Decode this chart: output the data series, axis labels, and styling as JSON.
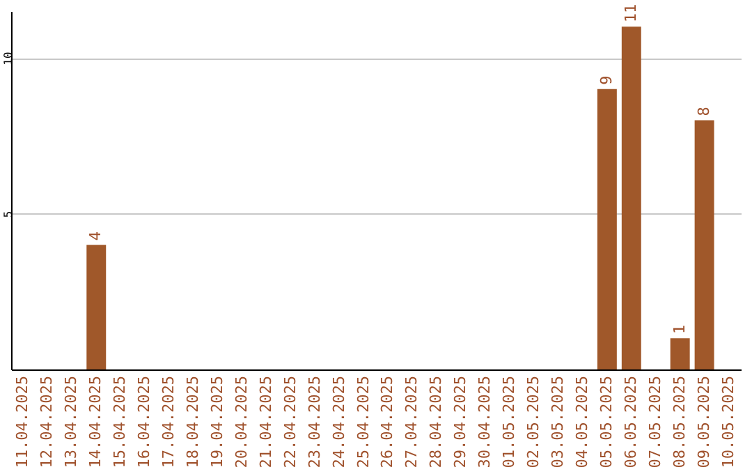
{
  "chart_data": {
    "type": "bar",
    "categories": [
      "11.04.2025",
      "12.04.2025",
      "13.04.2025",
      "14.04.2025",
      "15.04.2025",
      "16.04.2025",
      "17.04.2025",
      "18.04.2025",
      "19.04.2025",
      "20.04.2025",
      "21.04.2025",
      "22.04.2025",
      "23.04.2025",
      "24.04.2025",
      "25.04.2025",
      "26.04.2025",
      "27.04.2025",
      "28.04.2025",
      "29.04.2025",
      "30.04.2025",
      "01.05.2025",
      "02.05.2025",
      "03.05.2025",
      "04.05.2025",
      "05.05.2025",
      "06.05.2025",
      "07.05.2025",
      "08.05.2025",
      "09.05.2025",
      "10.05.2025"
    ],
    "values": [
      0,
      0,
      0,
      4,
      0,
      0,
      0,
      0,
      0,
      0,
      0,
      0,
      0,
      0,
      0,
      0,
      0,
      0,
      0,
      0,
      0,
      0,
      0,
      0,
      9,
      11,
      0,
      1,
      8,
      0
    ],
    "value_labels": [
      null,
      null,
      null,
      "4",
      null,
      null,
      null,
      null,
      null,
      null,
      null,
      null,
      null,
      null,
      null,
      null,
      null,
      null,
      null,
      null,
      null,
      null,
      null,
      null,
      "9",
      "11",
      null,
      "1",
      "8",
      null
    ],
    "color": "#a0582a",
    "ylim": [
      0,
      11.5
    ],
    "yticks": [
      5,
      10
    ],
    "grid": "y"
  }
}
